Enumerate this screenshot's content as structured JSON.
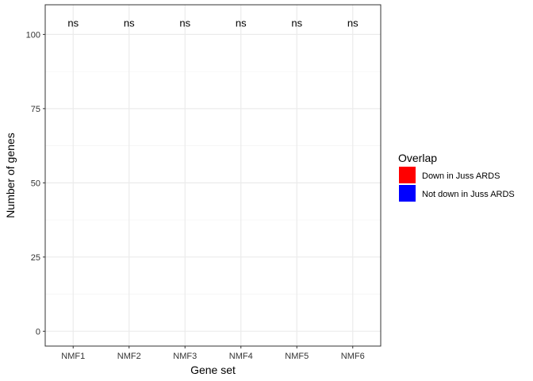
{
  "chart_data": {
    "type": "bar",
    "title": "",
    "xlabel": "Gene set",
    "ylabel": "Number of genes",
    "categories": [
      "NMF1",
      "NMF2",
      "NMF3",
      "NMF4",
      "NMF5",
      "NMF6"
    ],
    "series": [
      {
        "name": "Down in Juss ARDS",
        "color": "#FF0000",
        "values": [
          0,
          0,
          0,
          0,
          0,
          0
        ]
      },
      {
        "name": "Not down in Juss ARDS",
        "color": "#0000FF",
        "values": [
          0,
          0,
          0,
          0,
          0,
          0
        ]
      }
    ],
    "annotations": [
      "ns",
      "ns",
      "ns",
      "ns",
      "ns",
      "ns"
    ],
    "annotation_y": 104,
    "ylim": [
      -5,
      110
    ],
    "yticks": [
      0,
      25,
      50,
      75,
      100
    ],
    "y_minor_ticks": [
      12.5,
      37.5,
      62.5,
      87.5
    ],
    "grid": true,
    "legend": {
      "title": "Overlap",
      "placement": "right"
    }
  }
}
